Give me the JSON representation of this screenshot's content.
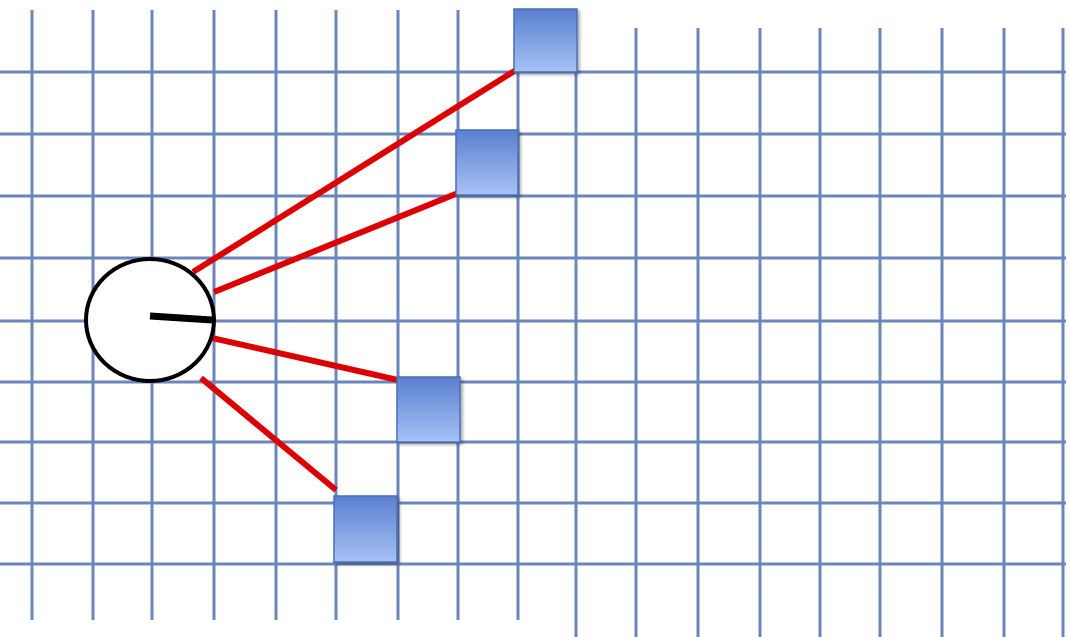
{
  "colors": {
    "grid": "#6a86bc",
    "ray": "#dd0000",
    "node_fill": "#ffffff",
    "node_stroke": "#000000",
    "heading": "#000000",
    "block_light": "#9cbaf0",
    "block_dark": "#5b7fd0",
    "block_stroke": "#4a6fb5"
  },
  "icons": {
    "robot": "circle-with-heading-line",
    "obstacle": "blue-square"
  },
  "diagram": {
    "robot_count": 1,
    "obstacle_count": 4,
    "ray_count": 4
  }
}
